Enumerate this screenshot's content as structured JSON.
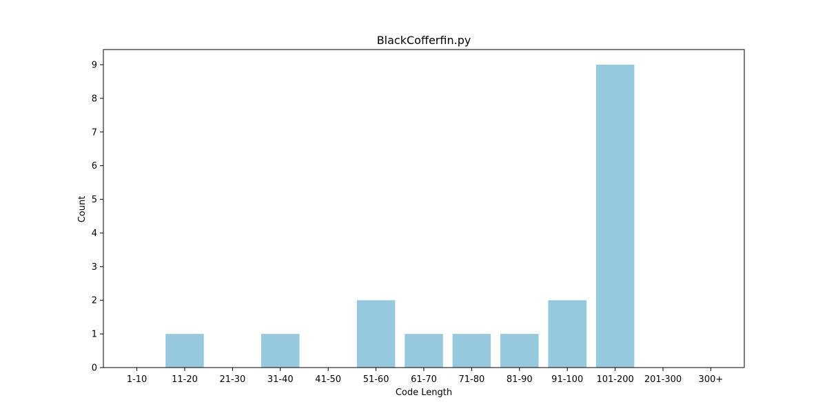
{
  "chart_data": {
    "type": "bar",
    "title": "BlackCofferfin.py",
    "xlabel": "Code Length",
    "ylabel": "Count",
    "categories": [
      "1-10",
      "11-20",
      "21-30",
      "31-40",
      "41-50",
      "51-60",
      "61-70",
      "71-80",
      "81-90",
      "91-100",
      "101-200",
      "201-300",
      "300+"
    ],
    "values": [
      0,
      1,
      0,
      1,
      0,
      2,
      1,
      1,
      1,
      2,
      9,
      0,
      0
    ],
    "ylim": [
      0,
      9.45
    ],
    "yticks": [
      0,
      1,
      2,
      3,
      4,
      5,
      6,
      7,
      8,
      9
    ],
    "bar_color": "#96c9dd",
    "grid": false,
    "legend": "none"
  }
}
